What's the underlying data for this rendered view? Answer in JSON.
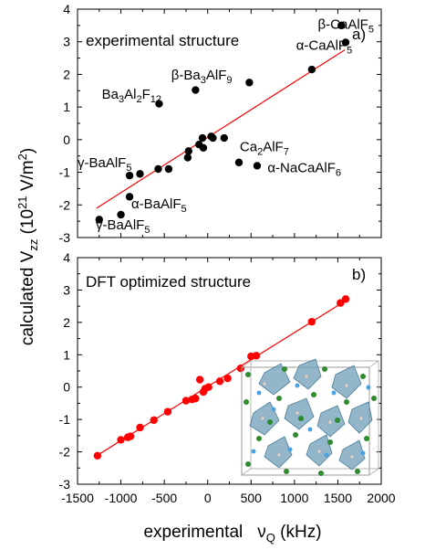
{
  "figure": {
    "xlabel_main": "experimental",
    "xlabel_sym": "ν",
    "xlabel_sub": "Q",
    "xlabel_unit": " (kHz)",
    "ylabel_pre": "calculated V",
    "ylabel_sub": "zz",
    "ylabel_mid": " (10",
    "ylabel_sup1": "21",
    "ylabel_mid2": " V/m",
    "ylabel_sup2": "2",
    "ylabel_post": ")"
  },
  "colors": {
    "panel_a_points": "#000000",
    "panel_b_points": "#ff0000",
    "fit_line": "#ff0000"
  },
  "chart_data": [
    {
      "type": "scatter",
      "panel_label": "a)",
      "title": "experimental structure",
      "x_ticks": [
        "-1500",
        "-1000",
        "-500",
        "0",
        "500",
        "1000",
        "1500",
        "2000"
      ],
      "y_ticks": [
        "4",
        "3",
        "2",
        "1",
        "0",
        "-1",
        "-2",
        "-3"
      ],
      "xlim": [
        -1500,
        2000
      ],
      "ylim": [
        -3,
        4
      ],
      "fit_line": [
        [
          -1280,
          -2.1
        ],
        [
          1580,
          2.75
        ]
      ],
      "points": [
        [
          -1250,
          -2.45
        ],
        [
          -1000,
          -2.3
        ],
        [
          -900,
          -1.75
        ],
        [
          -900,
          -1.1
        ],
        [
          -780,
          -1.05
        ],
        [
          -570,
          -0.9
        ],
        [
          -560,
          1.1
        ],
        [
          -450,
          -0.9
        ],
        [
          -230,
          -0.55
        ],
        [
          -220,
          -0.35
        ],
        [
          -140,
          1.52
        ],
        [
          -100,
          -0.15
        ],
        [
          -60,
          0.05
        ],
        [
          -50,
          -0.25
        ],
        [
          40,
          0.1
        ],
        [
          60,
          0.05
        ],
        [
          190,
          0.05
        ],
        [
          360,
          -0.7
        ],
        [
          480,
          1.75
        ],
        [
          570,
          -0.8
        ],
        [
          1200,
          2.15
        ],
        [
          1540,
          3.5
        ],
        [
          1590,
          2.98
        ]
      ],
      "annotations": [
        {
          "base": "β-CaAlF",
          "sub": "5",
          "sup": "",
          "x": 1270,
          "y": 3.4
        },
        {
          "base": "α-CaAlF",
          "sub": "5",
          "sup": "",
          "x": 1020,
          "y": 2.75
        },
        {
          "base": "β-Ba",
          "sub": "3",
          "mid": "AlF",
          "sub2": "9",
          "x": -420,
          "y": 1.85
        },
        {
          "base": "Ba",
          "sub": "3",
          "mid": "Al",
          "sub2": "2",
          "mid2": "F",
          "sub3": "12",
          "x": -1220,
          "y": 1.25
        },
        {
          "base": "Ca",
          "sub": "2",
          "mid": "AlF",
          "sub2": "7",
          "x": 370,
          "y": -0.35
        },
        {
          "base": "α-NaCaAlF",
          "sub": "6",
          "x": 690,
          "y": -1.0
        },
        {
          "base": "γ-BaAlF",
          "sub": "5",
          "x": -1500,
          "y": -0.85
        },
        {
          "base": "α-BaAlF",
          "sub": "5",
          "x": -880,
          "y": -2.1
        },
        {
          "base": "γ-BaAlF",
          "sub": "5",
          "x": -1290,
          "y": -2.75
        }
      ]
    },
    {
      "type": "scatter",
      "panel_label": "b)",
      "title": "DFT optimized structure",
      "x_ticks": [
        "-1500",
        "-1000",
        "-500",
        "0",
        "500",
        "1000",
        "1500",
        "2000"
      ],
      "y_ticks": [
        "4",
        "3",
        "2",
        "1",
        "0",
        "-1",
        "-2",
        "-3"
      ],
      "xlim": [
        -1500,
        2000
      ],
      "ylim": [
        -3,
        4
      ],
      "fit_line": [
        [
          -1280,
          -2.12
        ],
        [
          1620,
          2.72
        ]
      ],
      "points": [
        [
          -1270,
          -2.12
        ],
        [
          -1000,
          -1.63
        ],
        [
          -920,
          -1.55
        ],
        [
          -890,
          -1.52
        ],
        [
          -780,
          -1.25
        ],
        [
          -620,
          -1.02
        ],
        [
          -460,
          -0.76
        ],
        [
          -250,
          -0.42
        ],
        [
          -180,
          -0.38
        ],
        [
          -140,
          -0.35
        ],
        [
          -90,
          0.23
        ],
        [
          -50,
          -0.15
        ],
        [
          -30,
          -0.05
        ],
        [
          10,
          0.0
        ],
        [
          140,
          0.18
        ],
        [
          230,
          0.27
        ],
        [
          380,
          0.58
        ],
        [
          500,
          0.95
        ],
        [
          560,
          0.97
        ],
        [
          1200,
          2.02
        ],
        [
          1530,
          2.6
        ],
        [
          1590,
          2.72
        ]
      ]
    }
  ]
}
